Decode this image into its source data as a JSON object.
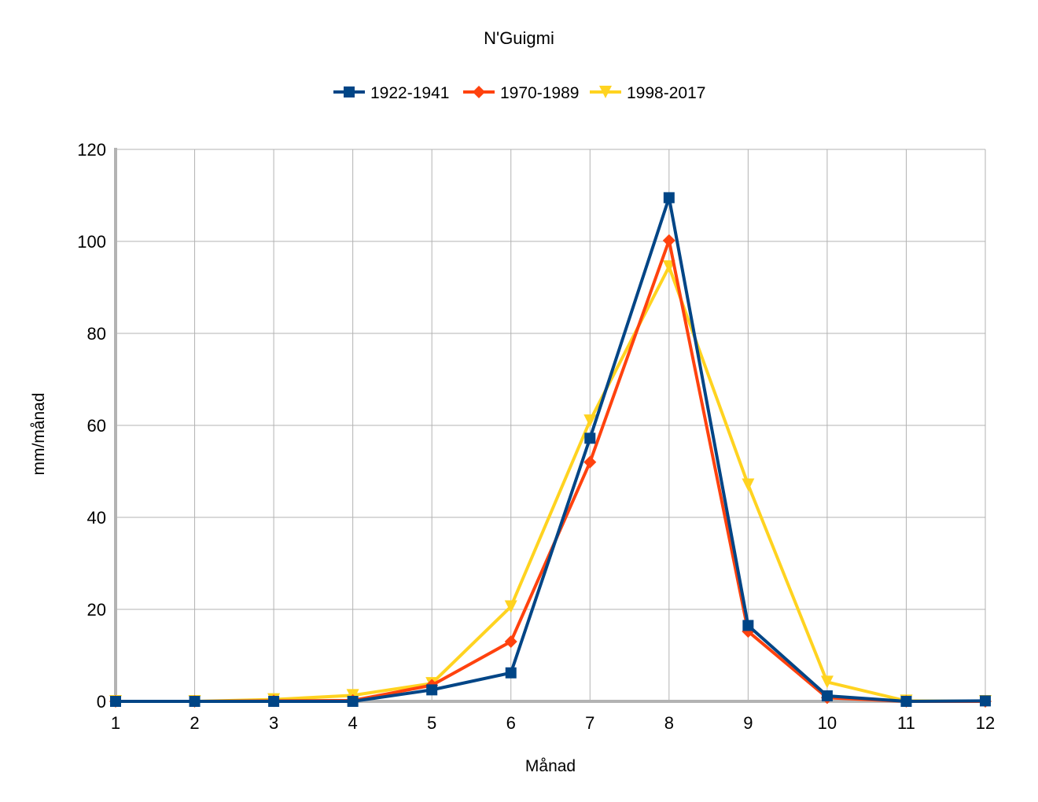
{
  "chart_data": {
    "type": "line",
    "title": "N'Guigmi",
    "xlabel": "Månad",
    "ylabel": "mm/månad",
    "x": [
      1,
      2,
      3,
      4,
      5,
      6,
      7,
      8,
      9,
      10,
      11,
      12
    ],
    "xlim": [
      1,
      12
    ],
    "ylim": [
      0,
      120
    ],
    "yticks": [
      0,
      20,
      40,
      60,
      80,
      100,
      120
    ],
    "grid": true,
    "legend_position": "top",
    "series": [
      {
        "name": "1922-1941",
        "color": "#004586",
        "marker": "square",
        "values": [
          0,
          0,
          0,
          0,
          2.5,
          6.2,
          57.2,
          109.5,
          16.5,
          1.2,
          0,
          0.1
        ]
      },
      {
        "name": "1970-1989",
        "color": "#ff420e",
        "marker": "diamond",
        "values": [
          0,
          0,
          0.1,
          0.2,
          3.5,
          13.0,
          52.0,
          100.2,
          15.2,
          0.8,
          0,
          0
        ]
      },
      {
        "name": "1998-2017",
        "color": "#ffd320",
        "marker": "triangle-down",
        "values": [
          0,
          0,
          0.4,
          1.3,
          3.9,
          20.6,
          61.0,
          94.5,
          47.1,
          4.2,
          0.1,
          0
        ]
      }
    ]
  }
}
